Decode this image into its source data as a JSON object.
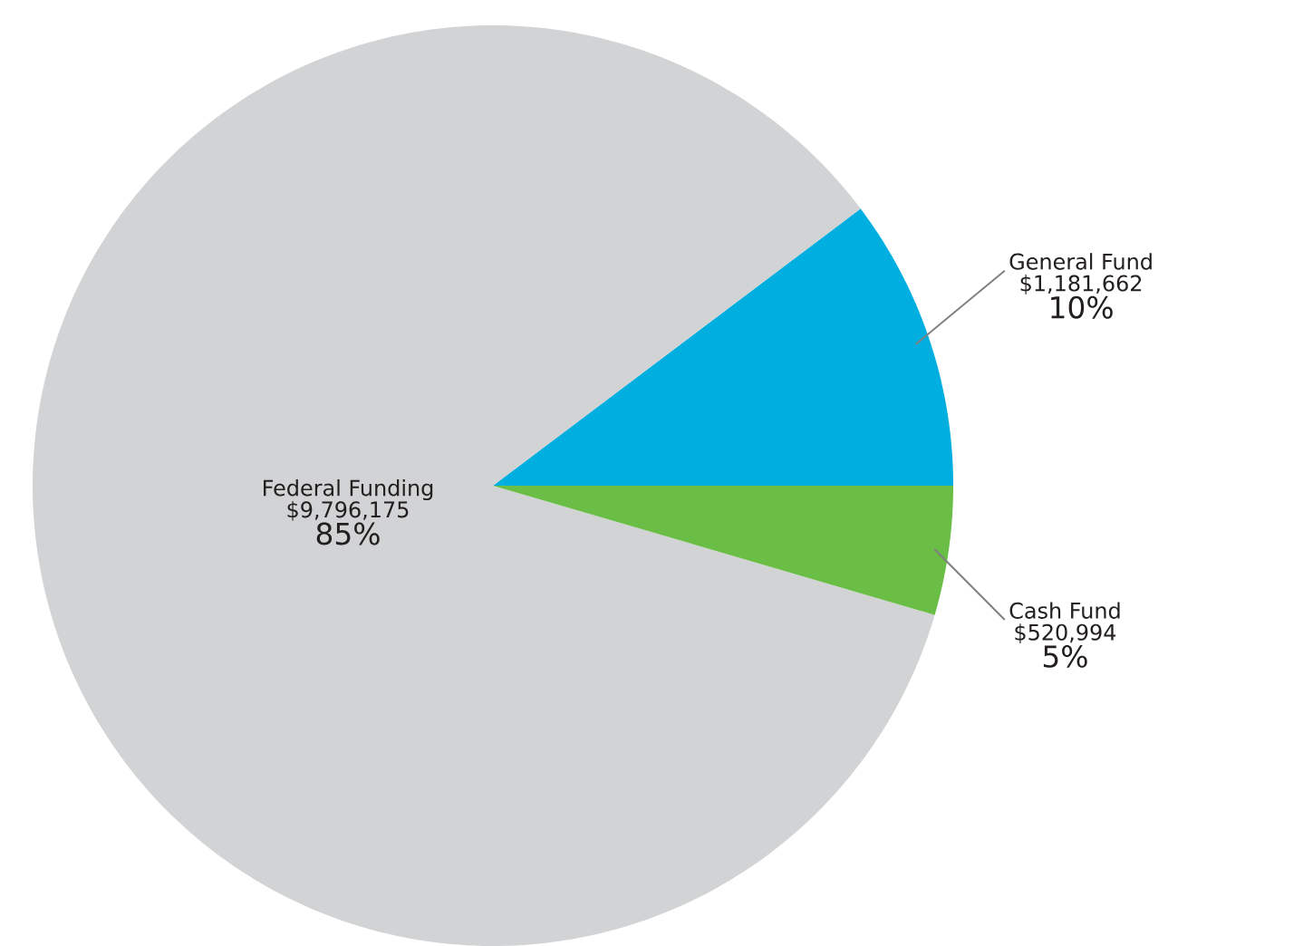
{
  "chart_data": {
    "type": "pie",
    "categories": [
      "General Fund",
      "Federal Funding",
      "Cash Fund"
    ],
    "values": [
      1181662,
      9796175,
      520994
    ],
    "value_labels": [
      "$1,181,662",
      "$9,796,175",
      "$520,994"
    ],
    "annotations": [
      "10%",
      "85%",
      "5%"
    ],
    "colors": [
      "#00aee0",
      "#d1d3d4",
      "#6abd45"
    ]
  }
}
